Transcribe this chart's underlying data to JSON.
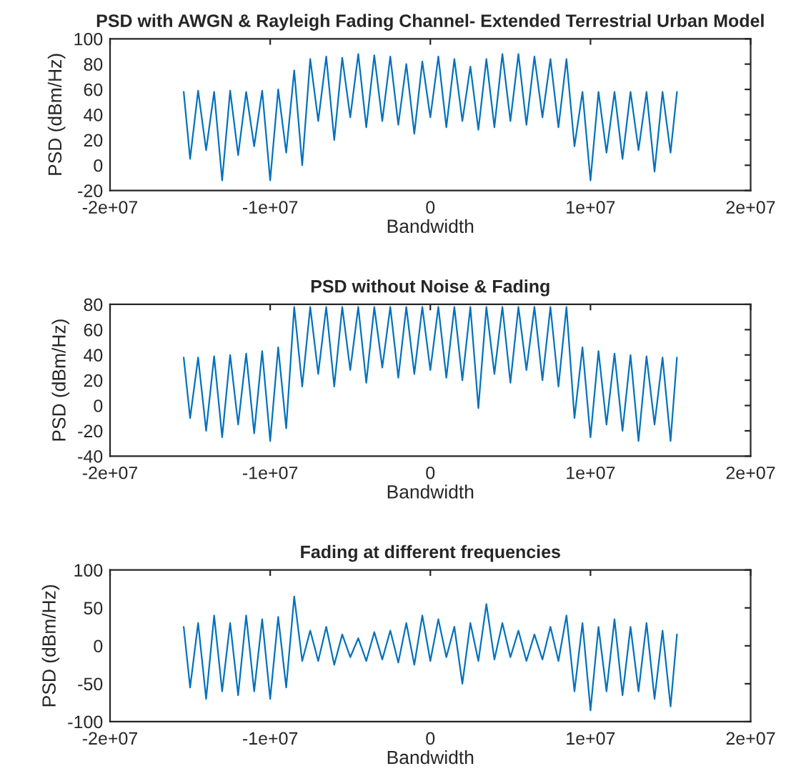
{
  "chart_data": [
    {
      "type": "line",
      "title": "PSD with AWGN & Rayleigh Fading Channel- Extended Terrestrial Urban Model",
      "xlabel": "Bandwidth",
      "ylabel": "PSD (dBm/Hz)",
      "xlim": [
        -20000000,
        20000000
      ],
      "xticks": [
        {
          "value": -20000000,
          "label": "-2e+07"
        },
        {
          "value": -10000000,
          "label": "-1e+07"
        },
        0,
        {
          "value": 10000000,
          "label": "1e+07"
        },
        {
          "value": 20000000,
          "label": "2e+07"
        }
      ],
      "ylim": [
        -20,
        100
      ],
      "yticks": [
        -20,
        0,
        20,
        40,
        60,
        80,
        100
      ],
      "grid": false,
      "x": [
        -15400000,
        -15000000,
        -14500000,
        -14000000,
        -13500000,
        -13000000,
        -12500000,
        -12000000,
        -11500000,
        -11000000,
        -10500000,
        -10000000,
        -9500000,
        -9000000,
        -8500000,
        -8000000,
        -7500000,
        -7000000,
        -6500000,
        -6000000,
        -5500000,
        -5000000,
        -4500000,
        -4000000,
        -3500000,
        -3000000,
        -2500000,
        -2000000,
        -1500000,
        -1000000,
        -500000,
        0,
        500000,
        1000000,
        1500000,
        2000000,
        2500000,
        3000000,
        3500000,
        4000000,
        4500000,
        5000000,
        5500000,
        6000000,
        6500000,
        7000000,
        7500000,
        8000000,
        8500000,
        9000000,
        9500000,
        10000000,
        10500000,
        11000000,
        11500000,
        12000000,
        12500000,
        13000000,
        13500000,
        14000000,
        14500000,
        15000000,
        15400000
      ],
      "series": [
        {
          "color": "#0072bd",
          "values": [
            58,
            5,
            59,
            12,
            58,
            -12,
            59,
            8,
            58,
            15,
            59,
            -12,
            60,
            10,
            75,
            0,
            84,
            35,
            86,
            20,
            85,
            38,
            88,
            30,
            87,
            35,
            86,
            32,
            80,
            25,
            82,
            38,
            86,
            30,
            84,
            35,
            78,
            28,
            84,
            30,
            88,
            35,
            88,
            32,
            86,
            38,
            84,
            30,
            84,
            15,
            58,
            -12,
            58,
            10,
            58,
            5,
            58,
            12,
            58,
            -5,
            58,
            10,
            58
          ]
        }
      ]
    },
    {
      "type": "line",
      "title": "PSD without Noise & Fading",
      "xlabel": "Bandwidth",
      "ylabel": "PSD (dBm/Hz)",
      "xlim": [
        -20000000,
        20000000
      ],
      "xticks": [
        {
          "value": -20000000,
          "label": "-2e+07"
        },
        {
          "value": -10000000,
          "label": "-1e+07"
        },
        0,
        {
          "value": 10000000,
          "label": "1e+07"
        },
        {
          "value": 20000000,
          "label": "2e+07"
        }
      ],
      "ylim": [
        -40,
        80
      ],
      "yticks": [
        -40,
        -20,
        0,
        20,
        40,
        60,
        80
      ],
      "grid": false,
      "x": [
        -15400000,
        -15000000,
        -14500000,
        -14000000,
        -13500000,
        -13000000,
        -12500000,
        -12000000,
        -11500000,
        -11000000,
        -10500000,
        -10000000,
        -9500000,
        -9000000,
        -8500000,
        -8000000,
        -7500000,
        -7000000,
        -6500000,
        -6000000,
        -5500000,
        -5000000,
        -4500000,
        -4000000,
        -3500000,
        -3000000,
        -2500000,
        -2000000,
        -1500000,
        -1000000,
        -500000,
        0,
        500000,
        1000000,
        1500000,
        2000000,
        2500000,
        3000000,
        3500000,
        4000000,
        4500000,
        5000000,
        5500000,
        6000000,
        6500000,
        7000000,
        7500000,
        8000000,
        8500000,
        9000000,
        9500000,
        10000000,
        10500000,
        11000000,
        11500000,
        12000000,
        12500000,
        13000000,
        13500000,
        14000000,
        14500000,
        15000000,
        15400000
      ],
      "series": [
        {
          "color": "#0072bd",
          "values": [
            38,
            -10,
            38,
            -20,
            39,
            -25,
            40,
            -15,
            41,
            -22,
            43,
            -28,
            46,
            -18,
            78,
            15,
            78,
            25,
            78,
            15,
            78,
            28,
            78,
            18,
            78,
            30,
            78,
            22,
            78,
            25,
            78,
            28,
            78,
            22,
            78,
            20,
            78,
            -2,
            78,
            25,
            78,
            18,
            78,
            28,
            78,
            20,
            78,
            15,
            78,
            -10,
            46,
            -25,
            43,
            -15,
            41,
            -20,
            40,
            -28,
            39,
            -15,
            38,
            -28,
            38
          ]
        }
      ]
    },
    {
      "type": "line",
      "title": "Fading at different frequencies",
      "xlabel": "Bandwidth",
      "ylabel": "PSD (dBm/Hz)",
      "xlim": [
        -20000000,
        20000000
      ],
      "xticks": [
        {
          "value": -20000000,
          "label": "-2e+07"
        },
        {
          "value": -10000000,
          "label": "-1e+07"
        },
        0,
        {
          "value": 10000000,
          "label": "1e+07"
        },
        {
          "value": 20000000,
          "label": "2e+07"
        }
      ],
      "ylim": [
        -100,
        100
      ],
      "yticks": [
        -100,
        -50,
        0,
        50,
        100
      ],
      "grid": false,
      "x": [
        -15400000,
        -15000000,
        -14500000,
        -14000000,
        -13500000,
        -13000000,
        -12500000,
        -12000000,
        -11500000,
        -11000000,
        -10500000,
        -10000000,
        -9500000,
        -9000000,
        -8500000,
        -8000000,
        -7500000,
        -7000000,
        -6500000,
        -6000000,
        -5500000,
        -5000000,
        -4500000,
        -4000000,
        -3500000,
        -3000000,
        -2500000,
        -2000000,
        -1500000,
        -1000000,
        -500000,
        0,
        500000,
        1000000,
        1500000,
        2000000,
        2500000,
        3000000,
        3500000,
        4000000,
        4500000,
        5000000,
        5500000,
        6000000,
        6500000,
        7000000,
        7500000,
        8000000,
        8500000,
        9000000,
        9500000,
        10000000,
        10500000,
        11000000,
        11500000,
        12000000,
        12500000,
        13000000,
        13500000,
        14000000,
        14500000,
        15000000,
        15400000
      ],
      "series": [
        {
          "color": "#0072bd",
          "values": [
            25,
            -55,
            30,
            -70,
            40,
            -60,
            30,
            -65,
            40,
            -60,
            35,
            -70,
            38,
            -55,
            65,
            -20,
            20,
            -20,
            25,
            -25,
            15,
            -15,
            10,
            -20,
            18,
            -18,
            20,
            -22,
            30,
            -25,
            40,
            -20,
            35,
            -15,
            25,
            -50,
            30,
            -20,
            55,
            -18,
            30,
            -15,
            20,
            -20,
            15,
            -18,
            25,
            -20,
            40,
            -60,
            30,
            -85,
            25,
            -60,
            35,
            -65,
            25,
            -60,
            30,
            -70,
            20,
            -80,
            15
          ]
        }
      ]
    }
  ]
}
